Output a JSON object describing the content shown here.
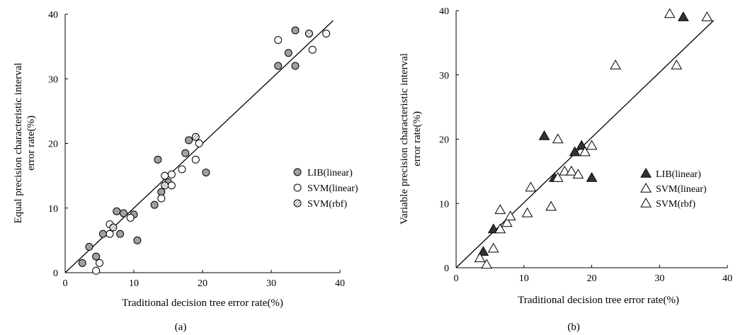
{
  "chart_data": [
    {
      "type": "scatter",
      "panel_label": "(a)",
      "xlabel": "Traditional decision tree error rate(%)",
      "ylabel_lines": [
        "Equal precision characteristic interval",
        "error rate(%)"
      ],
      "xlim": [
        0,
        40
      ],
      "ylim": [
        0,
        40
      ],
      "xticks": [
        0,
        10,
        20,
        30,
        40
      ],
      "yticks": [
        0,
        10,
        20,
        30,
        40
      ],
      "reference_line": [
        [
          0,
          0
        ],
        [
          39,
          39
        ]
      ],
      "legend_position": "right",
      "series": [
        {
          "name": "LIB(linear)",
          "marker": "circle-gray",
          "points": [
            [
              2.5,
              1.5
            ],
            [
              4.5,
              2.5
            ],
            [
              3.5,
              4
            ],
            [
              5.5,
              6
            ],
            [
              8,
              6
            ],
            [
              7.5,
              9.5
            ],
            [
              8.5,
              9.2
            ],
            [
              10,
              9
            ],
            [
              10.5,
              5
            ],
            [
              13,
              10.5
            ],
            [
              13.5,
              17.5
            ],
            [
              14,
              12.5
            ],
            [
              15,
              14
            ],
            [
              17.5,
              18.5
            ],
            [
              18,
              20.5
            ],
            [
              20.5,
              15.5
            ],
            [
              31,
              32
            ],
            [
              32.5,
              34
            ],
            [
              33.5,
              37.5
            ],
            [
              33.5,
              32
            ],
            [
              35.5,
              37
            ]
          ]
        },
        {
          "name": "SVM(linear)",
          "marker": "circle-open",
          "points": [
            [
              4.5,
              0.3
            ],
            [
              5,
              1.5
            ],
            [
              6.5,
              6
            ],
            [
              6.5,
              7.5
            ],
            [
              9.5,
              8.5
            ],
            [
              14,
              11.5
            ],
            [
              14.5,
              15
            ],
            [
              15.5,
              13.5
            ],
            [
              15.5,
              15.2
            ],
            [
              17,
              16
            ],
            [
              19,
              17.5
            ],
            [
              19.5,
              20
            ],
            [
              31,
              36
            ],
            [
              36,
              34.5
            ],
            [
              38,
              37
            ]
          ]
        },
        {
          "name": "SVM(rbf)",
          "marker": "circle-hatched",
          "points": [
            [
              7,
              7
            ],
            [
              14.5,
              13.5
            ],
            [
              19,
              21
            ],
            [
              35.5,
              37
            ]
          ]
        }
      ]
    },
    {
      "type": "scatter",
      "panel_label": "(b)",
      "xlabel": "Traditional decision tree error rate(%)",
      "ylabel_lines": [
        "Variable precision characteristic interval",
        "error rate(%)"
      ],
      "xlim": [
        0,
        40
      ],
      "ylim": [
        0,
        40
      ],
      "xticks": [
        0,
        10,
        20,
        30,
        40
      ],
      "yticks": [
        0,
        10,
        20,
        30,
        40
      ],
      "reference_line": [
        [
          0,
          0
        ],
        [
          38,
          38.5
        ]
      ],
      "legend_position": "right",
      "series": [
        {
          "name": "LIB(linear)",
          "marker": "triangle-filled",
          "points": [
            [
              4,
              2.5
            ],
            [
              5.5,
              6
            ],
            [
              13,
              20.5
            ],
            [
              14.5,
              14
            ],
            [
              17.5,
              18
            ],
            [
              18.5,
              19
            ],
            [
              20,
              14
            ],
            [
              33.5,
              39
            ]
          ]
        },
        {
          "name": "SVM(linear)",
          "marker": "triangle-open",
          "points": [
            [
              3.5,
              1.5
            ],
            [
              4.5,
              0.5
            ],
            [
              5.5,
              3
            ],
            [
              6.5,
              6
            ],
            [
              6.5,
              9
            ],
            [
              7.5,
              7
            ],
            [
              8,
              8
            ],
            [
              10.5,
              8.5
            ],
            [
              11,
              12.5
            ],
            [
              14,
              9.5
            ],
            [
              15,
              20
            ],
            [
              15,
              14
            ],
            [
              16,
              15
            ],
            [
              17,
              15
            ],
            [
              18,
              14.5
            ],
            [
              19,
              18
            ],
            [
              20,
              19
            ],
            [
              23.5,
              31.5
            ],
            [
              31.5,
              39.5
            ],
            [
              32.5,
              31.5
            ],
            [
              37,
              39
            ]
          ]
        },
        {
          "name": "SVM(rbf)",
          "marker": "triangle-open",
          "points": []
        }
      ]
    }
  ]
}
